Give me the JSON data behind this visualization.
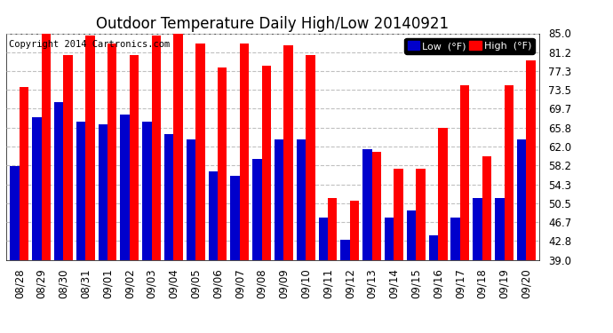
{
  "title": "Outdoor Temperature Daily High/Low 20140921",
  "copyright": "Copyright 2014 Cartronics.com",
  "legend_low": "Low  (°F)",
  "legend_high": "High  (°F)",
  "dates": [
    "08/28",
    "08/29",
    "08/30",
    "08/31",
    "09/01",
    "09/02",
    "09/03",
    "09/04",
    "09/05",
    "09/06",
    "09/07",
    "09/08",
    "09/09",
    "09/10",
    "09/11",
    "09/12",
    "09/13",
    "09/14",
    "09/15",
    "09/16",
    "09/17",
    "09/18",
    "09/19",
    "09/20"
  ],
  "highs": [
    74.0,
    85.0,
    80.5,
    84.5,
    83.0,
    80.5,
    84.5,
    85.0,
    83.0,
    78.0,
    83.0,
    78.5,
    82.5,
    80.5,
    51.5,
    51.0,
    61.0,
    57.5,
    57.5,
    65.8,
    74.5,
    60.0,
    74.5,
    79.5
  ],
  "lows": [
    58.0,
    68.0,
    71.0,
    67.0,
    66.5,
    68.5,
    67.0,
    64.5,
    63.5,
    57.0,
    56.0,
    59.5,
    63.5,
    63.5,
    47.5,
    43.0,
    61.5,
    47.5,
    49.0,
    44.0,
    47.5,
    51.5,
    51.5,
    63.5
  ],
  "ylim": [
    39.0,
    85.0
  ],
  "yticks": [
    39.0,
    42.8,
    46.7,
    50.5,
    54.3,
    58.2,
    62.0,
    65.8,
    69.7,
    73.5,
    77.3,
    81.2,
    85.0
  ],
  "bar_width": 0.42,
  "high_color": "#ff0000",
  "low_color": "#0000cc",
  "plot_bg_color": "#ffffff",
  "fig_bg_color": "#ffffff",
  "grid_color": "#c0c0c0",
  "title_fontsize": 12,
  "tick_fontsize": 8.5,
  "copyright_fontsize": 7.5,
  "legend_fontsize": 8
}
